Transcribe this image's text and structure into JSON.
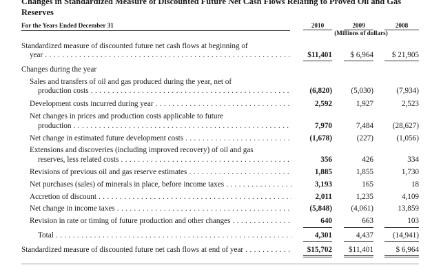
{
  "title": "Changes in Standardized Measure of Discounted Future Net Cash Flows Relating to Proved Oil and Gas Reserves",
  "header": {
    "period_label": "For the Years Ended December 31",
    "years": [
      "2010",
      "2009",
      "2008"
    ],
    "units": "(Millions of dollars)"
  },
  "opening": {
    "label_line1": "Standardized measure of discounted future net cash flows at beginning of",
    "label_line2": "year",
    "values": [
      "$11,401",
      "$ 6,964",
      "$ 21,905"
    ]
  },
  "changes_heading": "Changes during the year",
  "rows": [
    {
      "line1": "Sales and transfers of oil and gas produced during the year, net of",
      "line2": "production costs",
      "values": [
        "(6,820)",
        "(5,030)",
        "(7,934)"
      ]
    },
    {
      "line1": "Development costs incurred during year",
      "values": [
        "2,592",
        "1,927",
        "2,523"
      ]
    },
    {
      "line1": "Net changes in prices and production costs applicable to future",
      "line2": "production",
      "values": [
        "7,970",
        "7,484",
        "(28,627)"
      ]
    },
    {
      "line1": "Net change in estimated future development costs",
      "values": [
        "(1,678)",
        "(227)",
        "(1,056)"
      ]
    },
    {
      "line1": "Extensions and discoveries (including improved recovery) of oil and gas",
      "line2": "reserves, less related costs",
      "values": [
        "356",
        "426",
        "334"
      ]
    },
    {
      "line1": "Revisions of previous oil and gas reserve estimates",
      "values": [
        "1,885",
        "1,855",
        "1,730"
      ]
    },
    {
      "line1": "Net purchases (sales) of minerals in place, before income taxes",
      "values": [
        "3,193",
        "165",
        "18"
      ]
    },
    {
      "line1": "Accretion of discount",
      "values": [
        "2,011",
        "1,235",
        "4,109"
      ]
    },
    {
      "line1": "Net change in income taxes",
      "values": [
        "(5,848)",
        "(4,061)",
        "13,859"
      ]
    },
    {
      "line1": "Revision in rate or timing of future production and other changes",
      "values": [
        "640",
        "663",
        "103"
      ]
    }
  ],
  "total": {
    "label": "Total",
    "values": [
      "4,301",
      "4,437",
      "(14,941)"
    ]
  },
  "closing": {
    "label": "Standardized measure of discounted future net cash flows at end of year",
    "values": [
      "$15,702",
      "$11,401",
      "$ 6,964"
    ]
  }
}
